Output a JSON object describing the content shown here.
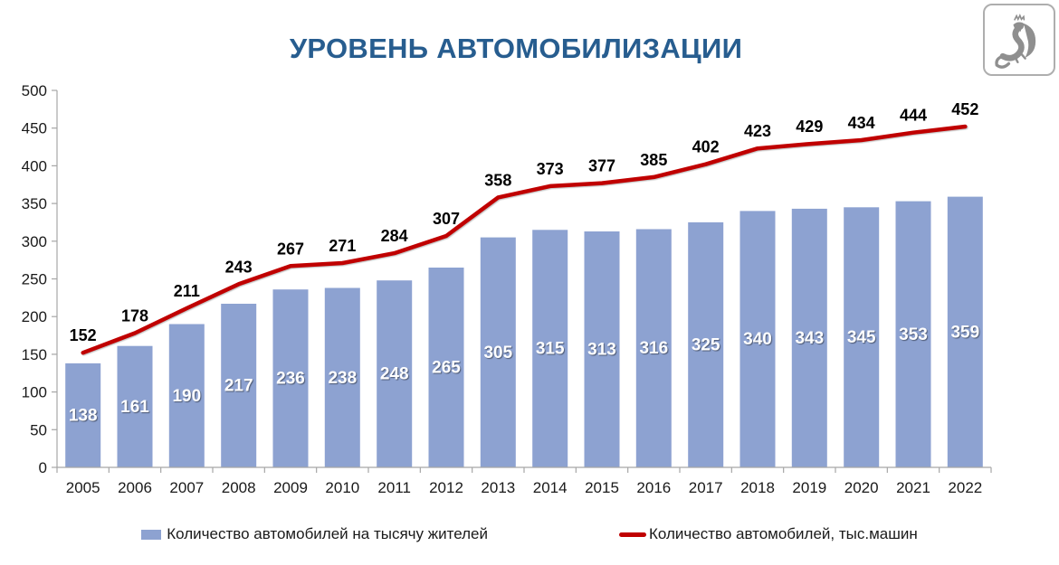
{
  "title": "УРОВЕНЬ АВТОМОБИЛИЗАЦИИ",
  "logo": {
    "name": "kazan-coat-of-arms"
  },
  "legend": {
    "bars": "Количество автомобилей на тысячу жителей",
    "line": "Количество автомобилей, тыс.машин"
  },
  "colors": {
    "bar": "#8DA2D1",
    "line": "#C00000",
    "title": "#275D8F",
    "axis": "#A6A6A6",
    "axis_text": "#1A1A1A",
    "bar_label": "#FFFFFF",
    "line_label": "#000000"
  },
  "chart_data": {
    "type": "bar",
    "subtype": "bar+line combo",
    "title": "УРОВЕНЬ АВТОМОБИЛИЗАЦИИ",
    "categories": [
      "2005",
      "2006",
      "2007",
      "2008",
      "2009",
      "2010",
      "2011",
      "2012",
      "2013",
      "2014",
      "2015",
      "2016",
      "2017",
      "2018",
      "2019",
      "2020",
      "2021",
      "2022"
    ],
    "series": [
      {
        "name": "Количество автомобилей на тысячу жителей",
        "type": "bar",
        "values": [
          138,
          161,
          190,
          217,
          236,
          238,
          248,
          265,
          305,
          315,
          313,
          316,
          325,
          340,
          343,
          345,
          353,
          359
        ]
      },
      {
        "name": "Количество автомобилей, тыс.машин",
        "type": "line",
        "values": [
          152,
          178,
          211,
          243,
          267,
          271,
          284,
          307,
          358,
          373,
          377,
          385,
          402,
          423,
          429,
          434,
          444,
          452
        ]
      }
    ],
    "xlabel": "",
    "ylabel": "",
    "ylim": [
      0,
      500
    ],
    "ytick_step": 50,
    "yticks": [
      0,
      50,
      100,
      150,
      200,
      250,
      300,
      350,
      400,
      450,
      500
    ],
    "grid": false,
    "data_labels": true,
    "legend_position": "bottom"
  }
}
